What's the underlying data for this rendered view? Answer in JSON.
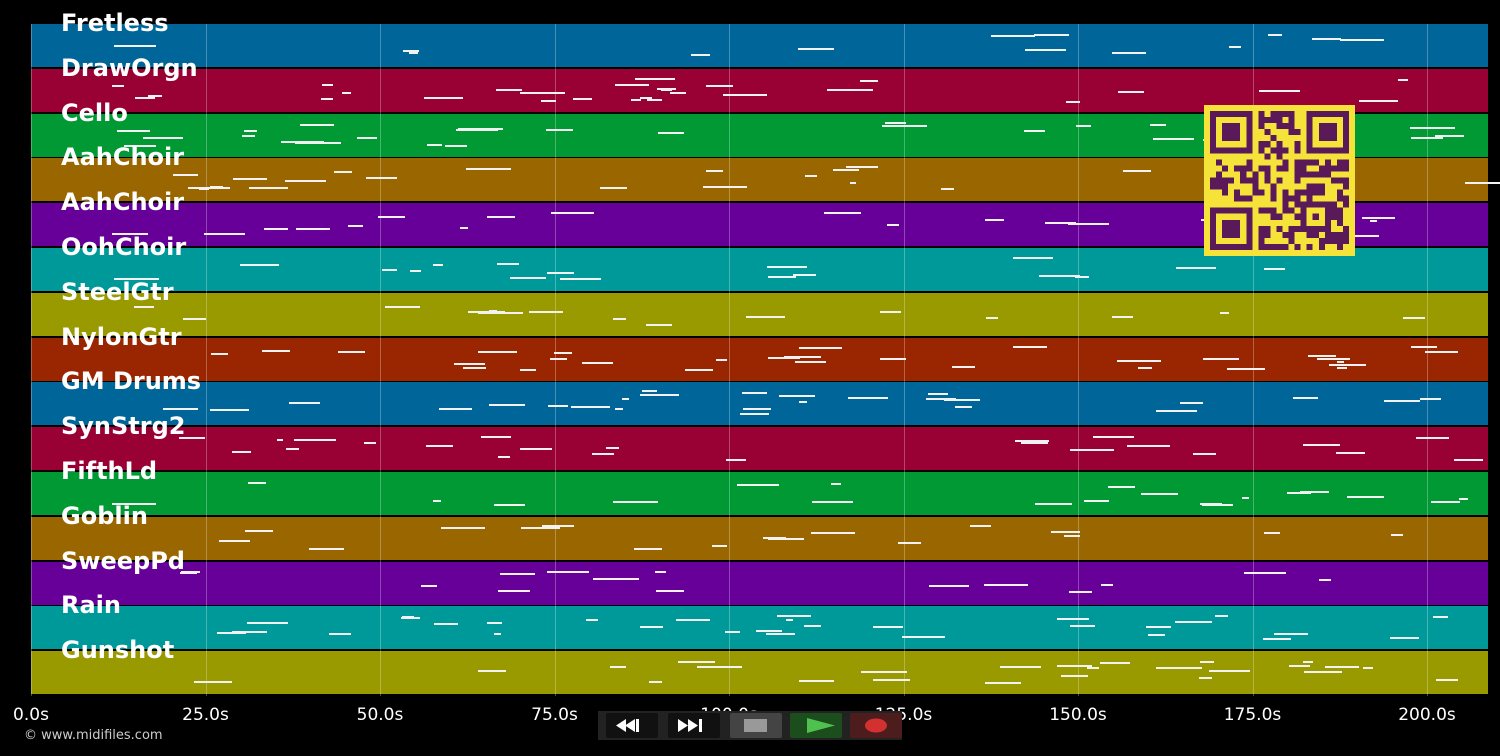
{
  "tracks": [
    {
      "name": "Fretless",
      "color": "#006699"
    },
    {
      "name": "DrawOrgn",
      "color": "#990033"
    },
    {
      "name": "Cello",
      "color": "#009933"
    },
    {
      "name": "AahChoir",
      "color": "#996600"
    },
    {
      "name": "AahChoir",
      "color": "#660099"
    },
    {
      "name": "OohChoir",
      "color": "#009999"
    },
    {
      "name": "SteelGtr",
      "color": "#999900"
    },
    {
      "name": "NylonGtr",
      "color": "#992600"
    },
    {
      "name": "GM Drums",
      "color": "#006699"
    },
    {
      "name": "SynStrg2",
      "color": "#990033"
    },
    {
      "name": "FifthLd",
      "color": "#009933"
    },
    {
      "name": "Goblin",
      "color": "#996600"
    },
    {
      "name": "SweepPd",
      "color": "#660099"
    },
    {
      "name": "Rain",
      "color": "#009999"
    },
    {
      "name": "Gunshot",
      "color": "#999900"
    }
  ],
  "timeline": {
    "ticks": [
      "0.0s",
      "25.0s",
      "50.0s",
      "75.0s",
      "100.0s",
      "125.0s",
      "150.0s",
      "175.0s",
      "200.0s"
    ],
    "tick_seconds": [
      0,
      25,
      50,
      75,
      100,
      125,
      150,
      175,
      200
    ],
    "max_seconds": 209
  },
  "transport": {
    "rewind_icon": "rewind-icon",
    "fast_forward_icon": "fast-forward-icon",
    "stop_icon": "stop-icon",
    "play_icon": "play-icon",
    "record_icon": "record-icon",
    "colors": {
      "play": "#4fc14f",
      "record": "#d33030",
      "stop": "#999999"
    }
  },
  "qr_code": {
    "color": "#f5e33a",
    "dark": "#5a1a5a"
  },
  "copyright": "© www.midifiles.com"
}
